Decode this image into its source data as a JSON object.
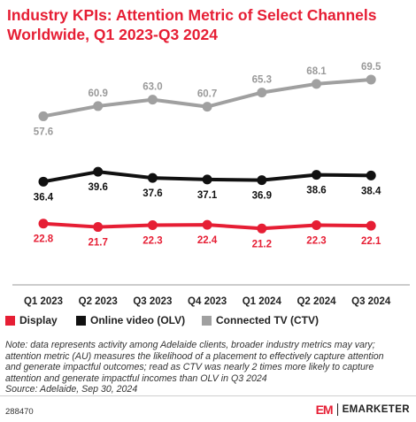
{
  "title": "Industry KPIs: Attention Metric of Select Channels Worldwide, Q1 2023-Q3 2024",
  "chart_data": {
    "type": "line",
    "categories": [
      "Q1 2023",
      "Q2 2023",
      "Q3 2023",
      "Q4 2023",
      "Q1 2024",
      "Q2 2024",
      "Q3 2024"
    ],
    "series": [
      {
        "name": "Display",
        "color": "#e61e34",
        "values": [
          22.8,
          21.7,
          22.3,
          22.4,
          21.2,
          22.3,
          22.1
        ],
        "labels": [
          "22.8",
          "21.7",
          "22.3",
          "22.4",
          "21.2",
          "22.3",
          "22.1"
        ]
      },
      {
        "name": "Online video (OLV)",
        "color": "#111111",
        "values": [
          36.4,
          39.6,
          37.6,
          37.1,
          36.9,
          38.6,
          38.4
        ],
        "labels": [
          "36.4",
          "39.6",
          "37.6",
          "37.1",
          "36.9",
          "38.6",
          "38.4"
        ]
      },
      {
        "name": "Connected TV (CTV)",
        "color": "#a0a0a0",
        "values": [
          57.6,
          60.9,
          63.0,
          60.7,
          65.3,
          68.1,
          69.5
        ],
        "labels": [
          "57.6",
          "60.9",
          "63.0",
          "60.7",
          "65.3",
          "68.1",
          "69.5"
        ]
      }
    ],
    "grid": false,
    "legend_position": "bottom"
  },
  "note": {
    "lines": [
      "Note: data represents activity among Adelaide clients, broader industry metrics may vary;",
      "attention metric (AU) measures the likelihood of a placement to effectively capture attention",
      "and generate impactful outcomes; read as CTV was nearly 2 times more likely to capture",
      "attention and generate impactful incomes than OLV in Q3 2024",
      "Source: Adelaide, Sep 30, 2024"
    ]
  },
  "footer": {
    "id": "288470",
    "brand_mark": "EM",
    "brand_name": "EMARKETER"
  }
}
